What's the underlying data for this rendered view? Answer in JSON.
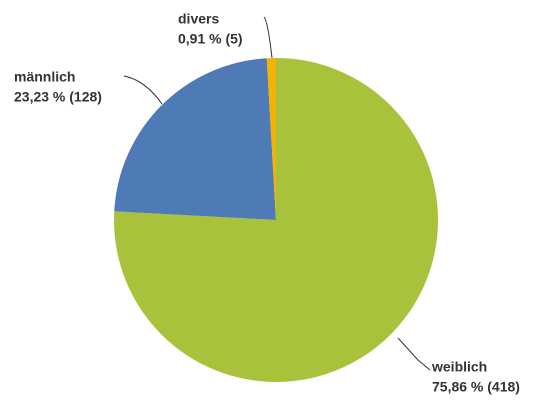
{
  "chart_data": {
    "type": "pie",
    "categories": [
      "weiblich",
      "männlich",
      "divers"
    ],
    "values": [
      75.86,
      23.23,
      0.91
    ],
    "value_labels": [
      "75,86 % (418)",
      "23,23 % (128)",
      "0,91 % (5)"
    ],
    "colors": [
      "#a8c23c",
      "#4e7ab5",
      "#f2b400"
    ]
  }
}
